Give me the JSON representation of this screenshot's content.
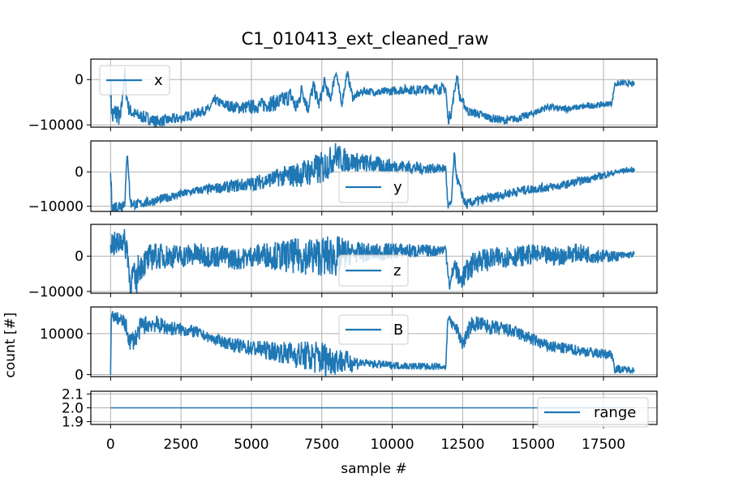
{
  "chart_data": {
    "type": "line",
    "title": "C1_010413_ext_cleaned_raw",
    "xlabel": "sample #",
    "ylabel": "count [#]",
    "xlim": [
      -700,
      19400
    ],
    "xticks": [
      0,
      2500,
      5000,
      7500,
      10000,
      12500,
      15000,
      17500
    ],
    "xtick_labels": [
      "0",
      "2500",
      "5000",
      "7500",
      "10000",
      "12500",
      "15000",
      "17500"
    ],
    "grid": true,
    "color": "#1f77b4",
    "panels": [
      {
        "name": "x",
        "legend": "upper left",
        "ylim": [
          -10500,
          4500
        ],
        "yticks": [
          -10000,
          0
        ],
        "ytick_labels": [
          "−10000",
          "0"
        ],
        "points": [
          [
            0,
            -1000
          ],
          [
            60,
            -8500
          ],
          [
            200,
            -7000
          ],
          [
            350,
            -9000
          ],
          [
            450,
            -2000
          ],
          [
            500,
            1500
          ],
          [
            560,
            -3000
          ],
          [
            650,
            -6500
          ],
          [
            800,
            -7500
          ],
          [
            1000,
            -8000
          ],
          [
            1300,
            -8500
          ],
          [
            1600,
            -9200
          ],
          [
            2000,
            -9000
          ],
          [
            2500,
            -8500
          ],
          [
            3000,
            -7500
          ],
          [
            3500,
            -6500
          ],
          [
            3700,
            -4500
          ],
          [
            4000,
            -5500
          ],
          [
            4500,
            -6200
          ],
          [
            5000,
            -6000
          ],
          [
            5500,
            -5500
          ],
          [
            6000,
            -5000
          ],
          [
            6400,
            -3500
          ],
          [
            6600,
            -6500
          ],
          [
            6800,
            -2000
          ],
          [
            7000,
            -6500
          ],
          [
            7200,
            -1500
          ],
          [
            7400,
            -5500
          ],
          [
            7600,
            -500
          ],
          [
            7800,
            -4500
          ],
          [
            8000,
            2000
          ],
          [
            8200,
            -5500
          ],
          [
            8400,
            1500
          ],
          [
            8600,
            -4000
          ],
          [
            9000,
            -2500
          ],
          [
            9500,
            -2800
          ],
          [
            10000,
            -2500
          ],
          [
            10500,
            -2200
          ],
          [
            11000,
            -2300
          ],
          [
            11500,
            -2000
          ],
          [
            11900,
            -2000
          ],
          [
            11980,
            -9000
          ],
          [
            12100,
            -7000
          ],
          [
            12300,
            1000
          ],
          [
            12400,
            -4000
          ],
          [
            12700,
            -7000
          ],
          [
            13000,
            -7500
          ],
          [
            13500,
            -8500
          ],
          [
            14000,
            -9000
          ],
          [
            14500,
            -8500
          ],
          [
            15000,
            -7500
          ],
          [
            15500,
            -6000
          ],
          [
            16000,
            -6500
          ],
          [
            16500,
            -6200
          ],
          [
            17000,
            -5800
          ],
          [
            17500,
            -5500
          ],
          [
            17800,
            -5200
          ],
          [
            17900,
            -1000
          ],
          [
            18200,
            -800
          ],
          [
            18600,
            -1000
          ]
        ],
        "noise": [
          [
            0,
            3000
          ],
          [
            600,
            1500
          ],
          [
            3500,
            1000
          ],
          [
            6200,
            2000
          ],
          [
            8700,
            800
          ],
          [
            11900,
            1200
          ],
          [
            12600,
            1000
          ],
          [
            17900,
            600
          ],
          [
            18700,
            600
          ]
        ]
      },
      {
        "name": "y",
        "legend": "lower center",
        "ylim": [
          -11500,
          9000
        ],
        "yticks": [
          -10000,
          0
        ],
        "ytick_labels": [
          "−10000",
          "0"
        ],
        "points": [
          [
            0,
            -1000
          ],
          [
            60,
            -10500
          ],
          [
            300,
            -10000
          ],
          [
            500,
            -9000
          ],
          [
            600,
            6000
          ],
          [
            700,
            -9000
          ],
          [
            900,
            -9500
          ],
          [
            1200,
            -9000
          ],
          [
            1500,
            -8500
          ],
          [
            2000,
            -7500
          ],
          [
            2500,
            -6500
          ],
          [
            3000,
            -5500
          ],
          [
            3500,
            -5000
          ],
          [
            4000,
            -4500
          ],
          [
            4500,
            -4000
          ],
          [
            5000,
            -3500
          ],
          [
            5500,
            -2500
          ],
          [
            6000,
            -1500
          ],
          [
            6500,
            -1000
          ],
          [
            7000,
            0
          ],
          [
            7500,
            1000
          ],
          [
            7800,
            3000
          ],
          [
            8000,
            5000
          ],
          [
            8200,
            3500
          ],
          [
            8500,
            3000
          ],
          [
            9000,
            2500
          ],
          [
            9500,
            2000
          ],
          [
            10000,
            1500
          ],
          [
            10500,
            1500
          ],
          [
            11000,
            1000
          ],
          [
            11500,
            1000
          ],
          [
            11900,
            1000
          ],
          [
            11980,
            -10500
          ],
          [
            12100,
            -9000
          ],
          [
            12200,
            5000
          ],
          [
            12300,
            -2000
          ],
          [
            12600,
            -9500
          ],
          [
            13000,
            -8500
          ],
          [
            13500,
            -7500
          ],
          [
            14000,
            -6500
          ],
          [
            14500,
            -5500
          ],
          [
            15000,
            -5000
          ],
          [
            15500,
            -4500
          ],
          [
            16000,
            -4000
          ],
          [
            16500,
            -3000
          ],
          [
            17000,
            -2000
          ],
          [
            17500,
            -1000
          ],
          [
            18000,
            0
          ],
          [
            18300,
            500
          ],
          [
            18600,
            500
          ]
        ],
        "noise": [
          [
            0,
            2500
          ],
          [
            800,
            1500
          ],
          [
            3000,
            1200
          ],
          [
            5800,
            2500
          ],
          [
            7500,
            5000
          ],
          [
            8600,
            3000
          ],
          [
            11900,
            1200
          ],
          [
            12600,
            1500
          ],
          [
            16500,
            1200
          ],
          [
            18700,
            700
          ]
        ]
      },
      {
        "name": "z",
        "legend": "lower center",
        "ylim": [
          -10500,
          9000
        ],
        "yticks": [
          -10000,
          0
        ],
        "ytick_labels": [
          "−10000",
          "0"
        ],
        "points": [
          [
            0,
            4000
          ],
          [
            200,
            3000
          ],
          [
            400,
            5000
          ],
          [
            600,
            2000
          ],
          [
            700,
            -9000
          ],
          [
            800,
            -5000
          ],
          [
            900,
            -8000
          ],
          [
            1000,
            -3000
          ],
          [
            1500,
            0
          ],
          [
            2000,
            0
          ],
          [
            2500,
            0
          ],
          [
            3000,
            500
          ],
          [
            3500,
            0
          ],
          [
            4000,
            0
          ],
          [
            4500,
            -1000
          ],
          [
            5000,
            0
          ],
          [
            5500,
            500
          ],
          [
            6000,
            0
          ],
          [
            6500,
            0
          ],
          [
            7000,
            0
          ],
          [
            7500,
            0
          ],
          [
            8000,
            0
          ],
          [
            8500,
            1000
          ],
          [
            9000,
            1000
          ],
          [
            9500,
            1000
          ],
          [
            10000,
            1500
          ],
          [
            10500,
            1500
          ],
          [
            11000,
            1500
          ],
          [
            11500,
            1500
          ],
          [
            11900,
            2000
          ],
          [
            12050,
            -9000
          ],
          [
            12200,
            -2000
          ],
          [
            12400,
            -7000
          ],
          [
            12800,
            -3000
          ],
          [
            13000,
            -1000
          ],
          [
            13500,
            -1000
          ],
          [
            14000,
            0
          ],
          [
            14500,
            0
          ],
          [
            15000,
            500
          ],
          [
            15500,
            0
          ],
          [
            16000,
            0
          ],
          [
            16500,
            1000
          ],
          [
            17000,
            500
          ],
          [
            17500,
            0
          ],
          [
            18000,
            0
          ],
          [
            18600,
            500
          ]
        ],
        "noise": [
          [
            0,
            3500
          ],
          [
            800,
            4500
          ],
          [
            2000,
            3500
          ],
          [
            5000,
            3000
          ],
          [
            6500,
            5000
          ],
          [
            8000,
            6000
          ],
          [
            8600,
            3000
          ],
          [
            11800,
            1500
          ],
          [
            12600,
            3500
          ],
          [
            14500,
            3000
          ],
          [
            17000,
            2500
          ],
          [
            18700,
            700
          ]
        ]
      },
      {
        "name": "B",
        "legend": "upper center",
        "ylim": [
          -500,
          16500
        ],
        "yticks": [
          0,
          10000
        ],
        "ytick_labels": [
          "0",
          "10000"
        ],
        "points": [
          [
            0,
            0
          ],
          [
            30,
            14500
          ],
          [
            300,
            13500
          ],
          [
            500,
            12500
          ],
          [
            700,
            8000
          ],
          [
            900,
            9000
          ],
          [
            1100,
            12000
          ],
          [
            1500,
            12500
          ],
          [
            2000,
            11500
          ],
          [
            2500,
            11000
          ],
          [
            3000,
            10500
          ],
          [
            3500,
            9000
          ],
          [
            4000,
            8000
          ],
          [
            4500,
            7000
          ],
          [
            5000,
            6500
          ],
          [
            5500,
            6000
          ],
          [
            6000,
            5500
          ],
          [
            6500,
            5000
          ],
          [
            7000,
            4500
          ],
          [
            7500,
            4000
          ],
          [
            8000,
            3500
          ],
          [
            8500,
            3000
          ],
          [
            9000,
            2800
          ],
          [
            9500,
            2500
          ],
          [
            10000,
            2300
          ],
          [
            10500,
            2100
          ],
          [
            11000,
            2000
          ],
          [
            11500,
            2000
          ],
          [
            11900,
            1800
          ],
          [
            11980,
            14500
          ],
          [
            12100,
            12500
          ],
          [
            12300,
            11000
          ],
          [
            12500,
            7500
          ],
          [
            12800,
            12000
          ],
          [
            13000,
            12500
          ],
          [
            13500,
            11500
          ],
          [
            14000,
            11000
          ],
          [
            14500,
            10000
          ],
          [
            15000,
            8500
          ],
          [
            15500,
            7000
          ],
          [
            16000,
            6500
          ],
          [
            16500,
            6000
          ],
          [
            17000,
            5500
          ],
          [
            17500,
            5000
          ],
          [
            17800,
            5000
          ],
          [
            17900,
            1500
          ],
          [
            18200,
            1200
          ],
          [
            18600,
            1200
          ]
        ],
        "noise": [
          [
            0,
            1200
          ],
          [
            800,
            2500
          ],
          [
            3500,
            1200
          ],
          [
            6000,
            2500
          ],
          [
            7500,
            4500
          ],
          [
            8500,
            2500
          ],
          [
            9000,
            1000
          ],
          [
            11900,
            800
          ],
          [
            12600,
            2000
          ],
          [
            15500,
            1500
          ],
          [
            17800,
            1200
          ],
          [
            18700,
            600
          ]
        ]
      },
      {
        "name": "range",
        "legend": "lower right",
        "ylim": [
          1.88,
          2.12
        ],
        "yticks": [
          1.9,
          2.0,
          2.1
        ],
        "ytick_labels": [
          "1.9",
          "2.0",
          "2.1"
        ],
        "points": [
          [
            0,
            2.0
          ],
          [
            18600,
            2.0
          ]
        ],
        "noise": [
          [
            0,
            0
          ],
          [
            18600,
            0
          ]
        ]
      }
    ]
  }
}
